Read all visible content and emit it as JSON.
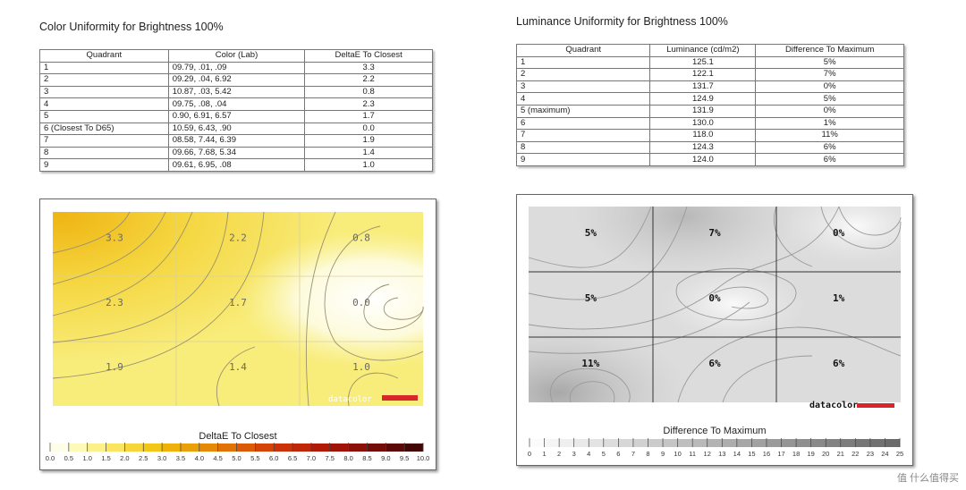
{
  "left": {
    "title": "Color Uniformity for Brightness 100%",
    "table": {
      "headers": [
        "Quadrant",
        "Color (Lab)",
        "DeltaE To Closest"
      ],
      "rows": [
        [
          "1",
          "09.79,    .01,    .09",
          "3.3"
        ],
        [
          "2",
          "09.29,    .04,  6.92",
          "2.2"
        ],
        [
          "3",
          "10.87,    .03,   5.42",
          "0.8"
        ],
        [
          "4",
          "09.75,    .08,    .04",
          "2.3"
        ],
        [
          "5",
          "  0.90,  6.91,  6.57",
          "1.7"
        ],
        [
          "6 (Closest To D65)",
          "10.59,  6.43,    .90",
          "0.0"
        ],
        [
          "7",
          "08.58,  7.44,  6.39",
          "1.9"
        ],
        [
          "8",
          "09.66,  7.68,  5.34",
          "1.4"
        ],
        [
          "9",
          "09.61,  6.95,    .08",
          "1.0"
        ]
      ]
    }
  },
  "right": {
    "title": "Luminance Uniformity for Brightness 100%",
    "table": {
      "headers": [
        "Quadrant",
        "Luminance (cd/m2)",
        "Difference To Maximum"
      ],
      "rows": [
        [
          "1",
          "125.1",
          "5%"
        ],
        [
          "2",
          "122.1",
          "7%"
        ],
        [
          "3",
          "131.7",
          "0%"
        ],
        [
          "4",
          "124.9",
          "5%"
        ],
        [
          "5 (maximum)",
          "131.9",
          "0%"
        ],
        [
          "6",
          "130.0",
          "1%"
        ],
        [
          "7",
          "118.0",
          "11%"
        ],
        [
          "8",
          "124.3",
          "6%"
        ],
        [
          "9",
          "124.0",
          "6%"
        ]
      ]
    }
  },
  "chart_data": [
    {
      "type": "heatmap",
      "title": "DeltaE To Closest",
      "grid": [
        [
          3.3,
          2.2,
          0.8
        ],
        [
          2.3,
          1.7,
          0.0
        ],
        [
          1.9,
          1.4,
          1.0
        ]
      ],
      "cell_labels": [
        [
          "3.3",
          "2.2",
          "0.8"
        ],
        [
          "2.3",
          "1.7",
          "0.0"
        ],
        [
          "1.9",
          "1.4",
          "1.0"
        ]
      ],
      "legend_ticks": [
        "0.0",
        "0.5",
        "1.0",
        "1.5",
        "2.0",
        "2.5",
        "3.0",
        "3.5",
        "4.0",
        "4.5",
        "5.0",
        "5.5",
        "6.0",
        "6.5",
        "7.0",
        "7.5",
        "8.0",
        "8.5",
        "9.0",
        "9.5",
        "10.0"
      ],
      "colors": [
        "#fdfde8",
        "#fdfab8",
        "#fbf08a",
        "#f9e560",
        "#f6d63a",
        "#f3c61a",
        "#efb20a",
        "#eaa008",
        "#e58a08",
        "#e07208",
        "#db5a08",
        "#d44408",
        "#cc3208",
        "#c02608",
        "#b21a08",
        "#a01408",
        "#8a1008",
        "#740c08",
        "#5c0808",
        "#420606"
      ],
      "logo": "datacolor"
    },
    {
      "type": "heatmap",
      "title": "Difference To Maximum",
      "grid": [
        [
          5,
          7,
          0
        ],
        [
          5,
          0,
          1
        ],
        [
          11,
          6,
          6
        ]
      ],
      "cell_labels": [
        [
          "5%",
          "7%",
          "0%"
        ],
        [
          "5%",
          "0%",
          "1%"
        ],
        [
          "11%",
          "6%",
          "6%"
        ]
      ],
      "legend_ticks": [
        "0",
        "1",
        "2",
        "3",
        "4",
        "5",
        "6",
        "7",
        "8",
        "9",
        "10",
        "11",
        "12",
        "13",
        "14",
        "15",
        "16",
        "17",
        "18",
        "19",
        "20",
        "21",
        "22",
        "23",
        "24",
        "25"
      ],
      "colors": [
        "#fbfbfb",
        "#f5f5f5",
        "#efefef",
        "#e9e9e9",
        "#e3e3e3",
        "#dddddd",
        "#d7d7d7",
        "#d1d1d1",
        "#cbcbcb",
        "#c5c5c5",
        "#bfbfbf",
        "#b9b9b9",
        "#b3b3b3",
        "#adadad",
        "#a7a7a7",
        "#a1a1a1",
        "#9b9b9b",
        "#959595",
        "#8f8f8f",
        "#898989",
        "#838383",
        "#7d7d7d",
        "#777777",
        "#717171",
        "#6b6b6b"
      ],
      "logo": "datacolor"
    }
  ],
  "watermark": "值 什么值得买"
}
